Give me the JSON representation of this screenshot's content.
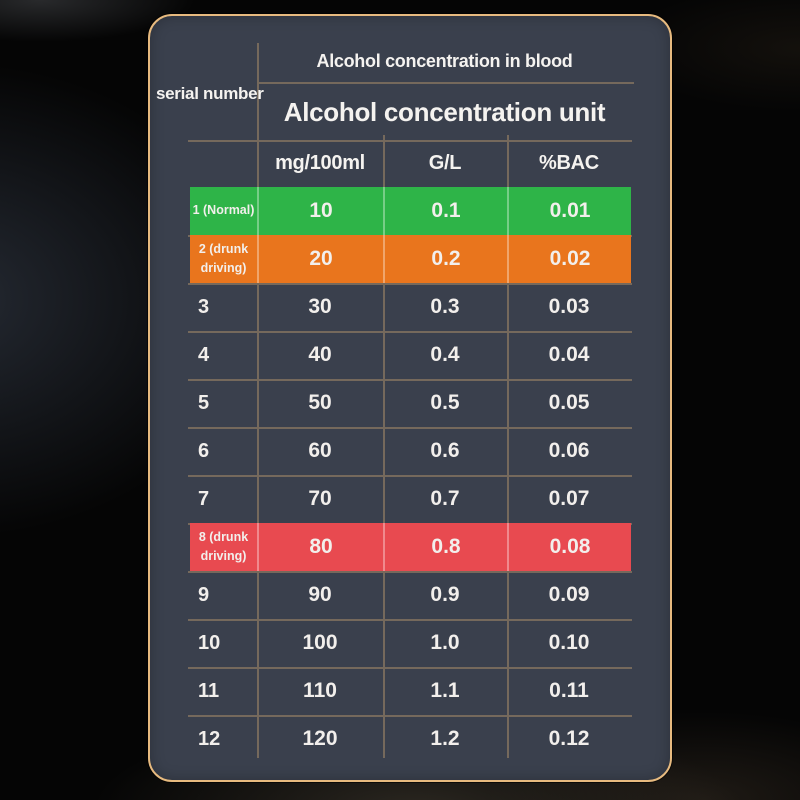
{
  "header": {
    "top_title": "Alcohol concentration in blood",
    "serial_header": "serial number",
    "unit_header": "Alcohol concentration unit"
  },
  "table": {
    "columns": [
      "mg/100ml",
      "G/L",
      "%BAC"
    ],
    "rows": [
      {
        "serial": "1 (Normal)",
        "mg100ml": "10",
        "gl": "0.1",
        "bac": "0.01",
        "highlight": "green"
      },
      {
        "serial": "2 (drunk driving)",
        "mg100ml": "20",
        "gl": "0.2",
        "bac": "0.02",
        "highlight": "orange"
      },
      {
        "serial": "3",
        "mg100ml": "30",
        "gl": "0.3",
        "bac": "0.03",
        "highlight": null
      },
      {
        "serial": "4",
        "mg100ml": "40",
        "gl": "0.4",
        "bac": "0.04",
        "highlight": null
      },
      {
        "serial": "5",
        "mg100ml": "50",
        "gl": "0.5",
        "bac": "0.05",
        "highlight": null
      },
      {
        "serial": "6",
        "mg100ml": "60",
        "gl": "0.6",
        "bac": "0.06",
        "highlight": null
      },
      {
        "serial": "7",
        "mg100ml": "70",
        "gl": "0.7",
        "bac": "0.07",
        "highlight": null
      },
      {
        "serial": "8 (drunk driving)",
        "mg100ml": "80",
        "gl": "0.8",
        "bac": "0.08",
        "highlight": "red"
      },
      {
        "serial": "9",
        "mg100ml": "90",
        "gl": "0.9",
        "bac": "0.09",
        "highlight": null
      },
      {
        "serial": "10",
        "mg100ml": "100",
        "gl": "1.0",
        "bac": "0.10",
        "highlight": null
      },
      {
        "serial": "11",
        "mg100ml": "110",
        "gl": "1.1",
        "bac": "0.11",
        "highlight": null
      },
      {
        "serial": "12",
        "mg100ml": "120",
        "gl": "1.2",
        "bac": "0.12",
        "highlight": null
      }
    ],
    "highlight_colors": {
      "green": "#2eb448",
      "orange": "#e9751d",
      "red": "#e84a50"
    }
  },
  "theme": {
    "panel_bg": "#3a404d",
    "grid_line": "#75695c",
    "border_gold": "#e7ba7f",
    "text": "#f5f3f0"
  },
  "chart_data": {
    "type": "table",
    "title": "Alcohol concentration in blood",
    "column_group_label": "Alcohol concentration unit",
    "row_header": "serial number",
    "columns": [
      "serial number",
      "mg/100ml",
      "G/L",
      "%BAC"
    ],
    "rows": [
      [
        "1 (Normal)",
        10,
        0.1,
        0.01
      ],
      [
        "2 (drunk driving)",
        20,
        0.2,
        0.02
      ],
      [
        "3",
        30,
        0.3,
        0.03
      ],
      [
        "4",
        40,
        0.4,
        0.04
      ],
      [
        "5",
        50,
        0.5,
        0.05
      ],
      [
        "6",
        60,
        0.6,
        0.06
      ],
      [
        "7",
        70,
        0.7,
        0.07
      ],
      [
        "8 (drunk driving)",
        80,
        0.8,
        0.08
      ],
      [
        "9",
        90,
        0.9,
        0.09
      ],
      [
        "10",
        100,
        1.0,
        0.1
      ],
      [
        "11",
        110,
        1.1,
        0.11
      ],
      [
        "12",
        120,
        1.2,
        0.12
      ]
    ],
    "highlighted_rows": [
      {
        "row": 1,
        "color": "#2eb448"
      },
      {
        "row": 2,
        "color": "#e9751d"
      },
      {
        "row": 8,
        "color": "#e84a50"
      }
    ]
  }
}
